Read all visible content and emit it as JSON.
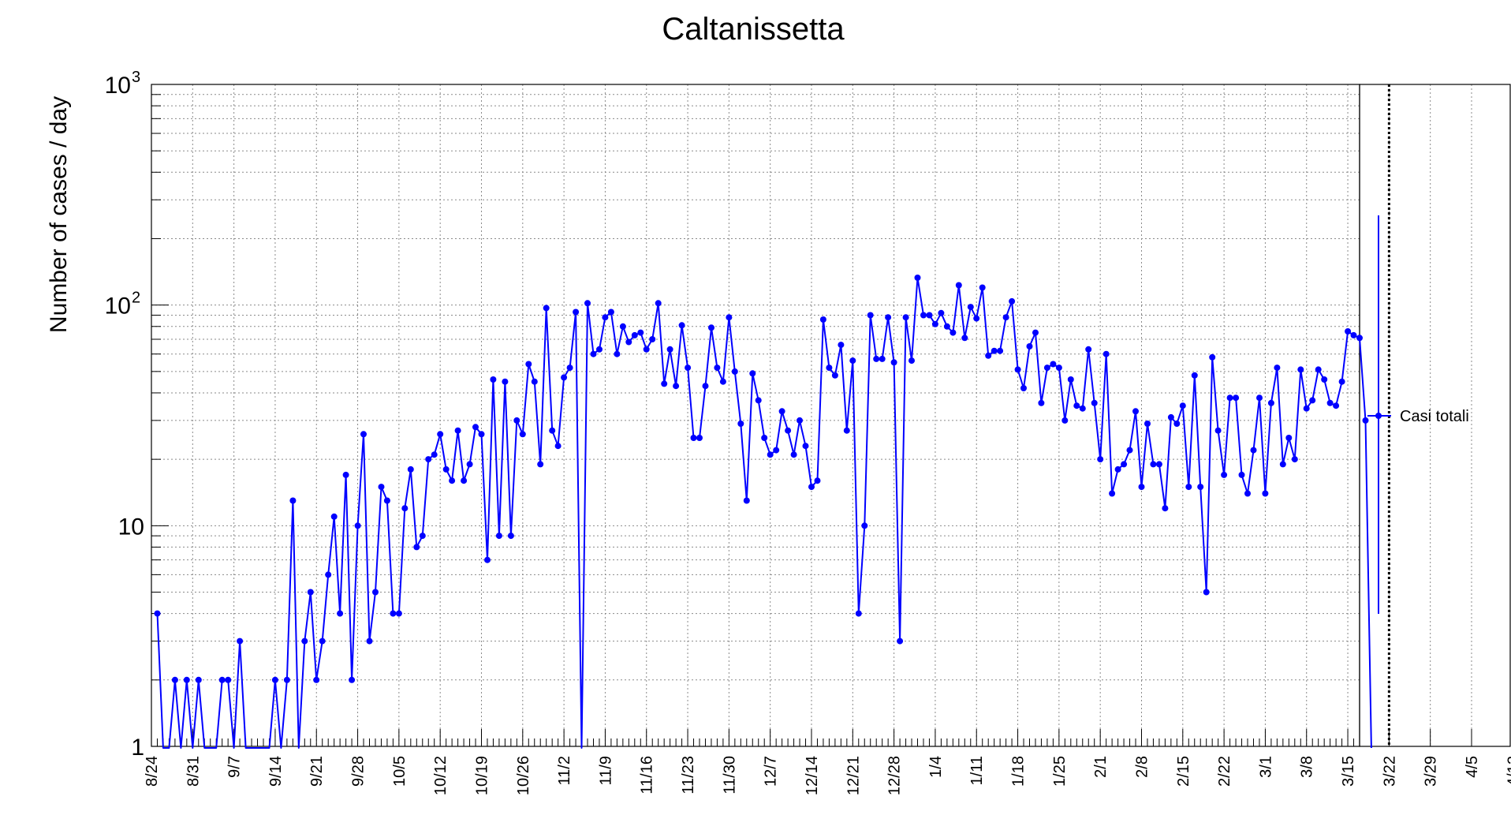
{
  "chart_data": {
    "type": "line",
    "title": "Caltanissetta",
    "ylabel": "Number of cases / day",
    "xlabel": "",
    "yscale": "log",
    "ylim": [
      1,
      1000
    ],
    "y_ticks": [
      {
        "value": 1,
        "base": "1",
        "exp": ""
      },
      {
        "value": 10,
        "base": "10",
        "exp": ""
      },
      {
        "value": 100,
        "base": "10",
        "exp": "2"
      },
      {
        "value": 1000,
        "base": "10",
        "exp": "3"
      }
    ],
    "x_tick_labels": [
      "8/24",
      "8/31",
      "9/7",
      "9/14",
      "9/21",
      "9/28",
      "10/5",
      "10/12",
      "10/19",
      "10/26",
      "11/2",
      "11/9",
      "11/16",
      "11/23",
      "11/30",
      "12/7",
      "12/14",
      "12/21",
      "12/28",
      "1/4",
      "1/11",
      "1/18",
      "1/25",
      "2/1",
      "2/8",
      "2/15",
      "2/22",
      "3/1",
      "3/8",
      "3/15",
      "3/22",
      "3/29",
      "4/5",
      "4/12"
    ],
    "x_start_date": "8/24",
    "grid": true,
    "legend_position": "right",
    "series": [
      {
        "name": "Casi totali",
        "color": "#0000ff",
        "start_offset_days": 1,
        "values": [
          4,
          0,
          0,
          2,
          0,
          2,
          0,
          2,
          0,
          0,
          0,
          2,
          2,
          0,
          3,
          0,
          0,
          0,
          0,
          0,
          2,
          0,
          2,
          13,
          0,
          3,
          5,
          2,
          3,
          6,
          11,
          4,
          17,
          2,
          10,
          26,
          3,
          5,
          15,
          13,
          4,
          4,
          12,
          18,
          8,
          9,
          20,
          21,
          26,
          18,
          16,
          27,
          16,
          19,
          28,
          26,
          7,
          46,
          9,
          45,
          9,
          30,
          26,
          54,
          45,
          19,
          97,
          27,
          23,
          47,
          52,
          93,
          0,
          102,
          60,
          63,
          88,
          93,
          60,
          80,
          68,
          73,
          75,
          63,
          70,
          102,
          44,
          63,
          43,
          81,
          52,
          25,
          25,
          43,
          79,
          52,
          45,
          88,
          50,
          29,
          13,
          49,
          37,
          25,
          21,
          22,
          33,
          27,
          21,
          30,
          23,
          15,
          16,
          86,
          52,
          48,
          66,
          27,
          56,
          4,
          10,
          90,
          57,
          57,
          88,
          55,
          3,
          88,
          56,
          133,
          90,
          90,
          82,
          92,
          80,
          75,
          123,
          71,
          98,
          87,
          120,
          59,
          62,
          62,
          88,
          104,
          51,
          42,
          65,
          75,
          36,
          52,
          54,
          52,
          30,
          46,
          35,
          34,
          63,
          36,
          20,
          60,
          14,
          18,
          19,
          22,
          33,
          15,
          29,
          19,
          19,
          12,
          31,
          29,
          35,
          15,
          48,
          15,
          5,
          58,
          27,
          17,
          38,
          38,
          17,
          14,
          22,
          38,
          14,
          36,
          52,
          19,
          25,
          20,
          51,
          34,
          37,
          51,
          46,
          36,
          35,
          45,
          76,
          73,
          71,
          30,
          0
        ]
      }
    ],
    "reference_line": {
      "date": "3/22"
    }
  }
}
